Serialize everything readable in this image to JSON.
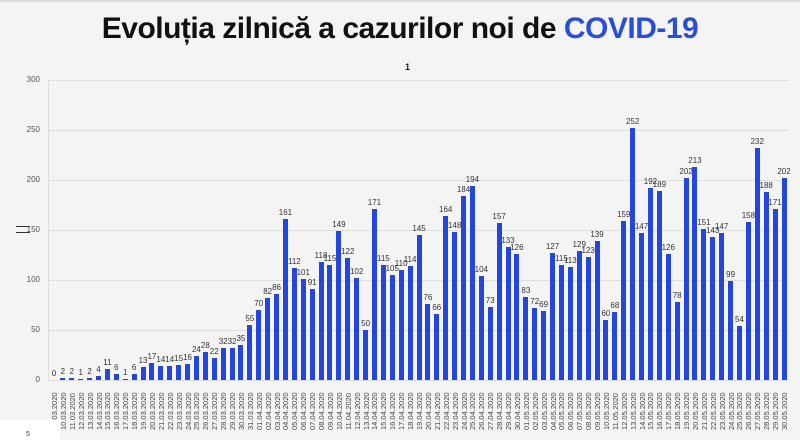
{
  "header": {
    "title_main": "Evoluția zilnică a cazurilor noi de ",
    "title_highlight": "COVID-19",
    "subtitle": "1"
  },
  "footer": {
    "page_number": "5"
  },
  "colors": {
    "bar": "#2446dc",
    "highlight": "#2a4fd6"
  },
  "chart_data": {
    "type": "bar",
    "title": "Evoluția zilnică a cazurilor noi de COVID-19",
    "subtitle": "1",
    "xlabel": "",
    "ylabel": "",
    "ylim": [
      0,
      300
    ],
    "yticks": [
      0,
      50,
      100,
      150,
      200,
      250,
      300
    ],
    "grid": true,
    "legend": "none",
    "categories": [
      "09.03.2020",
      "10.03.2020",
      "11.03.2020",
      "12.03.2020",
      "13.03.2020",
      "14.03.2020",
      "15.03.2020",
      "16.03.2020",
      "17.03.2020",
      "18.03.2020",
      "19.03.2020",
      "20.03.2020",
      "21.03.2020",
      "22.03.2020",
      "23.03.2020",
      "24.03.2020",
      "25.03.2020",
      "26.03.2020",
      "27.03.2020",
      "28.03.2020",
      "29.03.2020",
      "30.03.2020",
      "31.03.2020",
      "01.04.2020",
      "02.04.2020",
      "03.04.2020",
      "04.04.2020",
      "05.04.2020",
      "06.04.2020",
      "07.04.2020",
      "08.04.2020",
      "09.04.2020",
      "10.04.2020",
      "11.04.2020",
      "12.04.2020",
      "13.04.2020",
      "14.04.2020",
      "15.04.2020",
      "16.04.2020",
      "17.04.2020",
      "18.04.2020",
      "19.04.2020",
      "20.04.2020",
      "21.04.2020",
      "22.04.2020",
      "23.04.2020",
      "24.04.2020",
      "25.04.2020",
      "26.04.2020",
      "27.04.2020",
      "28.04.2020",
      "29.04.2020",
      "30.04.2020",
      "01.05.2020",
      "02.05.2020",
      "03.05.2020",
      "04.05.2020",
      "05.05.2020",
      "06.05.2020",
      "07.05.2020",
      "08.05.2020",
      "09.05.2020",
      "10.05.2020",
      "11.05.2020",
      "12.05.2020",
      "13.05.2020",
      "14.05.2020",
      "15.05.2020",
      "16.05.2020",
      "17.05.2020",
      "18.05.2020",
      "19.05.2020",
      "20.05.2020",
      "21.05.2020",
      "22.05.2020",
      "23.05.2020",
      "24.05.2020",
      "25.05.2020",
      "26.05.2020",
      "27.05.2020",
      "28.05.2020",
      "29.05.2020",
      "30.05.2020"
    ],
    "values": [
      0,
      2,
      2,
      1,
      2,
      4,
      11,
      6,
      1,
      6,
      13,
      17,
      14,
      14,
      15,
      16,
      24,
      28,
      22,
      32,
      32,
      35,
      55,
      70,
      82,
      86,
      161,
      112,
      101,
      91,
      118,
      115,
      149,
      122,
      102,
      50,
      171,
      115,
      105,
      110,
      114,
      145,
      76,
      66,
      164,
      148,
      184,
      194,
      104,
      73,
      157,
      133,
      126,
      83,
      72,
      69,
      127,
      115,
      113,
      129,
      123,
      139,
      60,
      68,
      159,
      252,
      147,
      192,
      189,
      126,
      78,
      202,
      213,
      151,
      143,
      147,
      99,
      54,
      158,
      232,
      188,
      171,
      202
    ]
  }
}
